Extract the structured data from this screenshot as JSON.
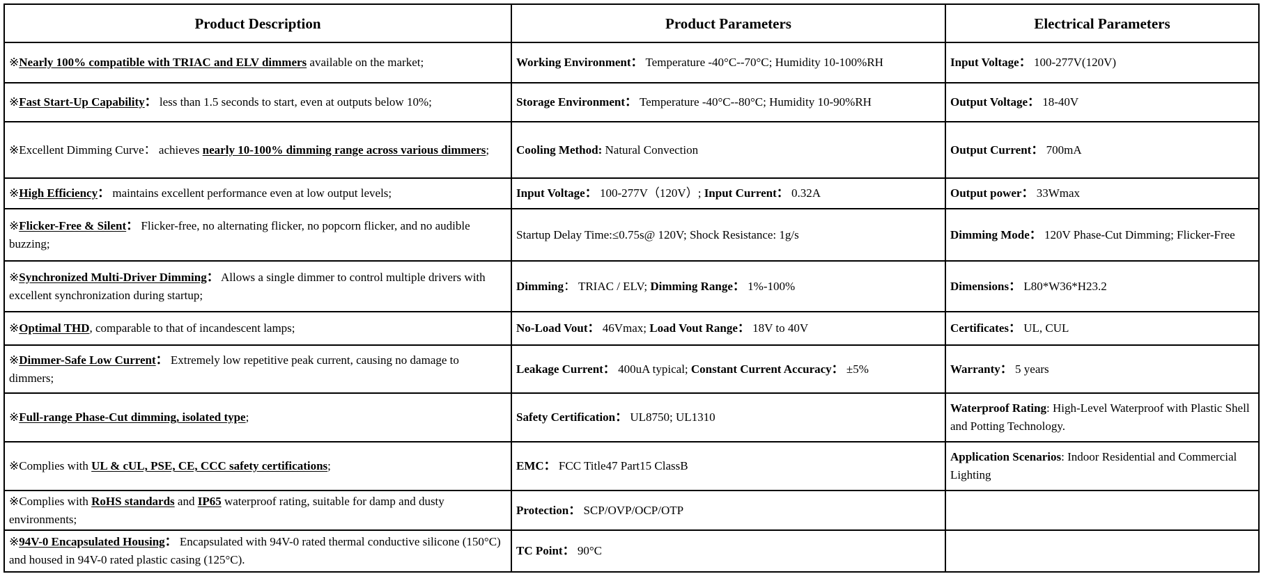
{
  "headers": [
    "Product Description",
    "Product Parameters",
    "Electrical Parameters"
  ],
  "rows": [
    [
      [
        {
          "t": "※"
        },
        {
          "t": "Nearly 100% compatible with TRIAC and ELV dimmers",
          "b": 1,
          "u": 1
        },
        {
          "t": " available on the market;"
        }
      ],
      [
        {
          "t": "Working Environment：",
          "b": 1
        },
        {
          "t": " Temperature -40°C--70°C; Humidity 10-100%RH"
        }
      ],
      [
        {
          "t": "Input Voltage：",
          "b": 1
        },
        {
          "t": " 100-277V(120V)"
        }
      ]
    ],
    [
      [
        {
          "t": "※"
        },
        {
          "t": "Fast Start-Up Capability",
          "b": 1,
          "u": 1
        },
        {
          "t": "：",
          "b": 1
        },
        {
          "t": " less than 1.5 seconds to start, even at outputs below 10%;"
        }
      ],
      [
        {
          "t": "Storage Environment：",
          "b": 1
        },
        {
          "t": " Temperature -40°C--80°C; Humidity 10-90%RH"
        }
      ],
      [
        {
          "t": "Output Voltage：",
          "b": 1
        },
        {
          "t": " 18-40V"
        }
      ]
    ],
    [
      [
        {
          "t": "※Excellent Dimming Curve： achieves "
        },
        {
          "t": "nearly 10-100% dimming range across various dimmers",
          "b": 1,
          "u": 1
        },
        {
          "t": ";"
        }
      ],
      [
        {
          "t": "Cooling Method:",
          "b": 1
        },
        {
          "t": " Natural Convection"
        }
      ],
      [
        {
          "t": "Output Current：",
          "b": 1
        },
        {
          "t": " 700mA"
        }
      ]
    ],
    [
      [
        {
          "t": "※"
        },
        {
          "t": "High Efficiency",
          "b": 1,
          "u": 1
        },
        {
          "t": "：",
          "b": 1
        },
        {
          "t": " maintains excellent performance even at low output levels;"
        }
      ],
      [
        {
          "t": "Input Voltage：",
          "b": 1
        },
        {
          "t": " 100-277V（120V）; "
        },
        {
          "t": "Input Current：",
          "b": 1
        },
        {
          "t": " 0.32A"
        }
      ],
      [
        {
          "t": "Output power：",
          "b": 1
        },
        {
          "t": " 33Wmax"
        }
      ]
    ],
    [
      [
        {
          "t": "※"
        },
        {
          "t": "Flicker-Free & Silent",
          "b": 1,
          "u": 1
        },
        {
          "t": "：",
          "b": 1
        },
        {
          "t": " Flicker-free, no alternating flicker, no popcorn flicker, and no audible buzzing;"
        }
      ],
      [
        {
          "t": "Startup Delay Time:≤0.75s@ 120V; Shock Resistance: 1g/s"
        }
      ],
      [
        {
          "t": "Dimming Mode：",
          "b": 1
        },
        {
          "t": " 120V  Phase-Cut Dimming; Flicker-Free"
        }
      ]
    ],
    [
      [
        {
          "t": "※"
        },
        {
          "t": "Synchronized Multi-Driver Dimming",
          "b": 1,
          "u": 1
        },
        {
          "t": "：",
          "b": 1
        },
        {
          "t": " Allows a single dimmer to control multiple drivers with excellent synchronization during startup;"
        }
      ],
      [
        {
          "t": "Dimming",
          "b": 1
        },
        {
          "t": "： TRIAC / ELV;  "
        },
        {
          "t": "Dimming Range：",
          "b": 1
        },
        {
          "t": " 1%-100%"
        }
      ],
      [
        {
          "t": "Dimensions：",
          "b": 1
        },
        {
          "t": " L80*W36*H23.2"
        }
      ]
    ],
    [
      [
        {
          "t": "※"
        },
        {
          "t": "Optimal THD",
          "b": 1,
          "u": 1
        },
        {
          "t": ", comparable to that of incandescent lamps;"
        }
      ],
      [
        {
          "t": "No-Load Vout：",
          "b": 1
        },
        {
          "t": " 46Vmax;  "
        },
        {
          "t": "Load Vout Range：",
          "b": 1
        },
        {
          "t": " 18V to 40V"
        }
      ],
      [
        {
          "t": "Certificates：",
          "b": 1
        },
        {
          "t": " UL, CUL"
        }
      ]
    ],
    [
      [
        {
          "t": "※"
        },
        {
          "t": "Dimmer-Safe Low Current",
          "b": 1,
          "u": 1
        },
        {
          "t": "：",
          "b": 1
        },
        {
          "t": " Extremely low repetitive peak current, causing no damage to dimmers;"
        }
      ],
      [
        {
          "t": "Leakage Current：",
          "b": 1
        },
        {
          "t": " 400uA typical;  "
        },
        {
          "t": "Constant Current Accuracy：",
          "b": 1
        },
        {
          "t": " ±5%"
        }
      ],
      [
        {
          "t": "Warranty：",
          "b": 1
        },
        {
          "t": " 5 years"
        }
      ]
    ],
    [
      [
        {
          "t": "※"
        },
        {
          "t": "Full-range Phase-Cut dimming, isolated type",
          "b": 1,
          "u": 1
        },
        {
          "t": ";"
        }
      ],
      [
        {
          "t": "Safety Certification：",
          "b": 1
        },
        {
          "t": " UL8750; UL1310"
        }
      ],
      [
        {
          "t": "Waterproof Rating",
          "b": 1
        },
        {
          "t": ": High-Level Waterproof with Plastic Shell and Potting Technology."
        }
      ]
    ],
    [
      [
        {
          "t": "※Complies with "
        },
        {
          "t": "UL & cUL, PSE, CE, CCC safety certifications",
          "b": 1,
          "u": 1
        },
        {
          "t": ";"
        }
      ],
      [
        {
          "t": "EMC：",
          "b": 1
        },
        {
          "t": " FCC Title47 Part15 ClassB"
        }
      ],
      [
        {
          "t": "Application Scenarios",
          "b": 1
        },
        {
          "t": ": Indoor Residential and Commercial Lighting"
        }
      ]
    ],
    [
      [
        {
          "t": "※Complies with "
        },
        {
          "t": "RoHS standards",
          "b": 1,
          "u": 1
        },
        {
          "t": " and "
        },
        {
          "t": "IP65",
          "b": 1,
          "u": 1
        },
        {
          "t": " waterproof rating, suitable for damp and dusty environments;"
        }
      ],
      [
        {
          "t": "Protection：",
          "b": 1
        },
        {
          "t": " SCP/OVP/OCP/OTP"
        }
      ],
      []
    ],
    [
      [
        {
          "t": "※"
        },
        {
          "t": "94V-0 Encapsulated Housing",
          "b": 1,
          "u": 1
        },
        {
          "t": "：",
          "b": 1
        },
        {
          "t": " Encapsulated with 94V-0 rated thermal conductive silicone (150°C) and housed in 94V-0 rated plastic casing (125°C)."
        }
      ],
      [
        {
          "t": "TC Point：",
          "b": 1
        },
        {
          "t": " 90°C"
        }
      ],
      []
    ]
  ]
}
